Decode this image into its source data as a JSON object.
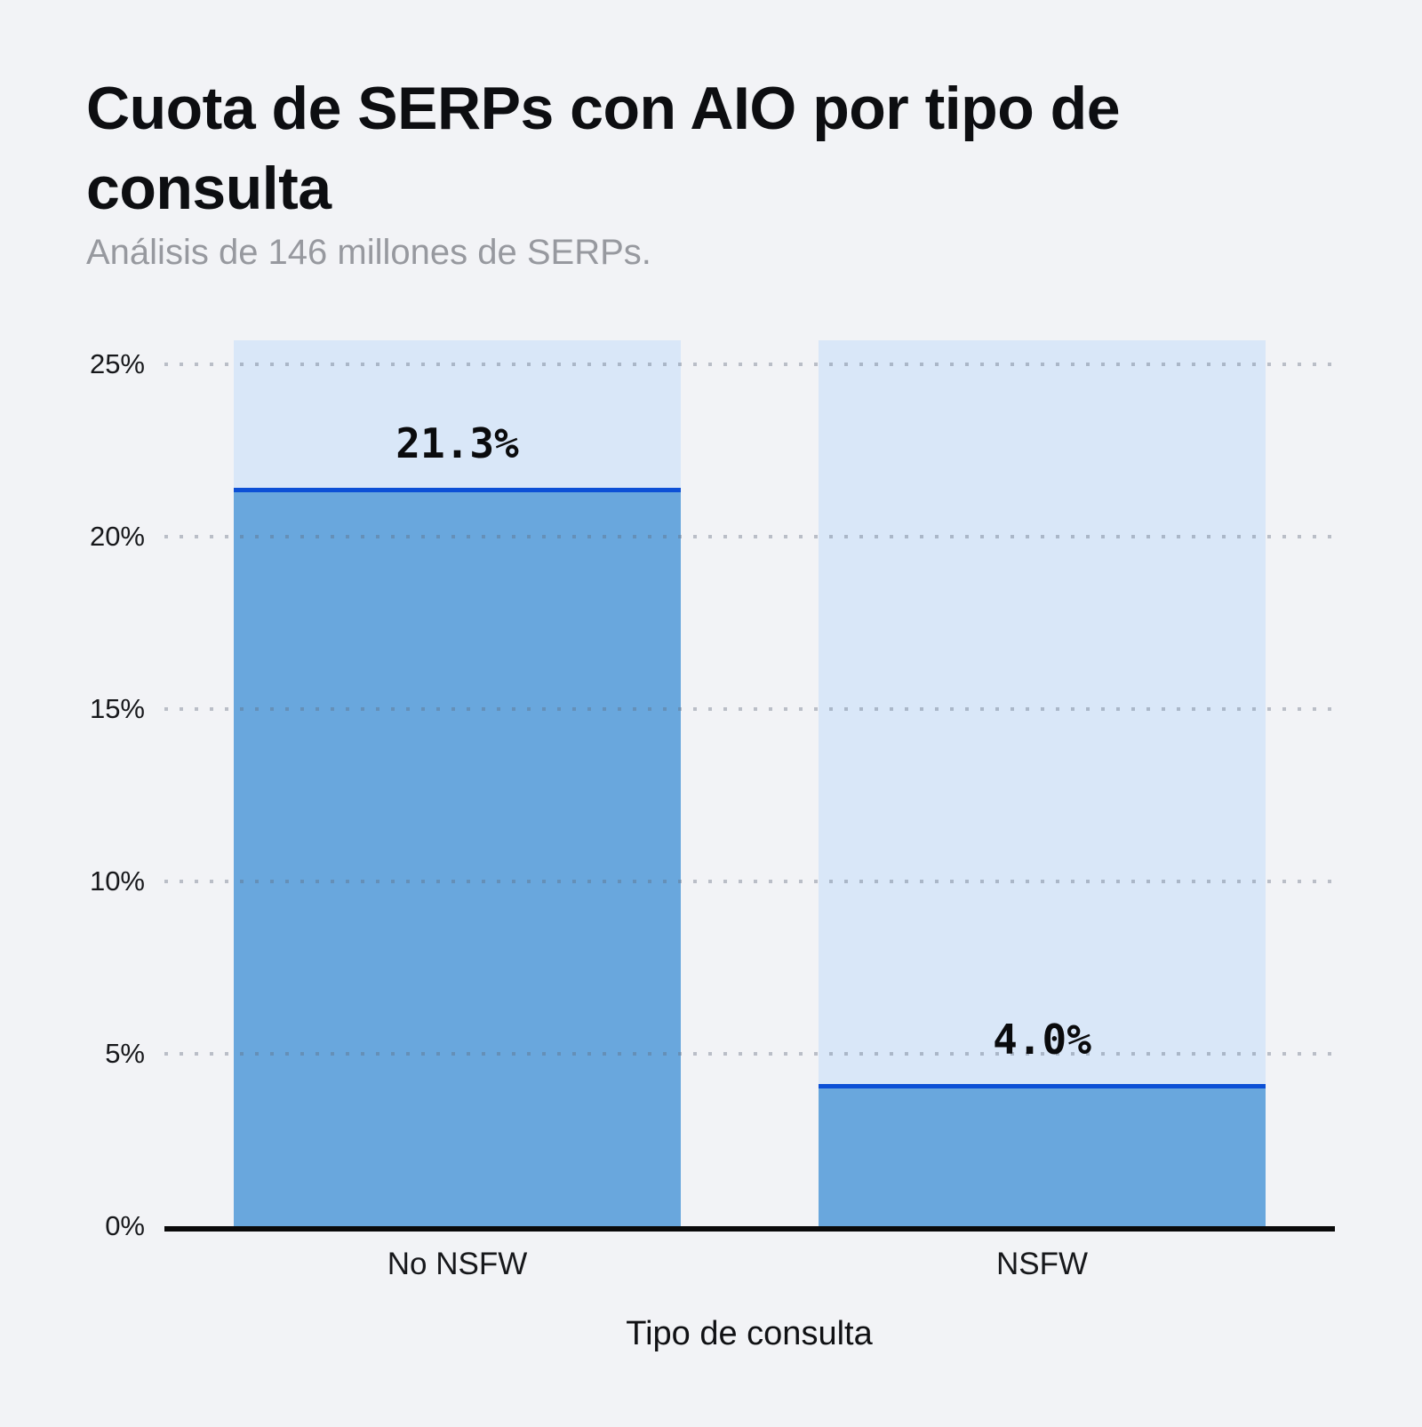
{
  "title": "Cuota de SERPs con AIO por tipo de consulta",
  "subtitle": "Análisis de 146 millones de SERPs.",
  "chart_data": {
    "type": "bar",
    "title": "Cuota de SERPs con AIO por tipo de consulta",
    "subtitle": "Análisis de 146 millones de SERPs.",
    "categories": [
      "No NSFW",
      "NSFW"
    ],
    "values": [
      21.3,
      4.0
    ],
    "value_labels": [
      "21.3%",
      "4.0%"
    ],
    "xlabel": "Tipo de consulta",
    "ylabel": "",
    "ylim": [
      0,
      25.7
    ],
    "ytick_values": [
      0,
      5,
      10,
      15,
      20,
      25
    ],
    "ytick_labels": [
      "0%",
      "5%",
      "10%",
      "15%",
      "20%",
      "25%"
    ],
    "grid": "horizontal-dotted",
    "legend": "none",
    "colors": {
      "background": "#f2f3f6",
      "bar_background": "#d9e7f8",
      "bar_fill": "#69a7dd",
      "bar_top_line": "#0c50d6",
      "axis_line": "#0a0a0a",
      "grid_dots": "#9aa1ad",
      "title_text": "#0d0e11",
      "subtitle_text": "#97999f",
      "tick_text": "#17181b"
    }
  }
}
